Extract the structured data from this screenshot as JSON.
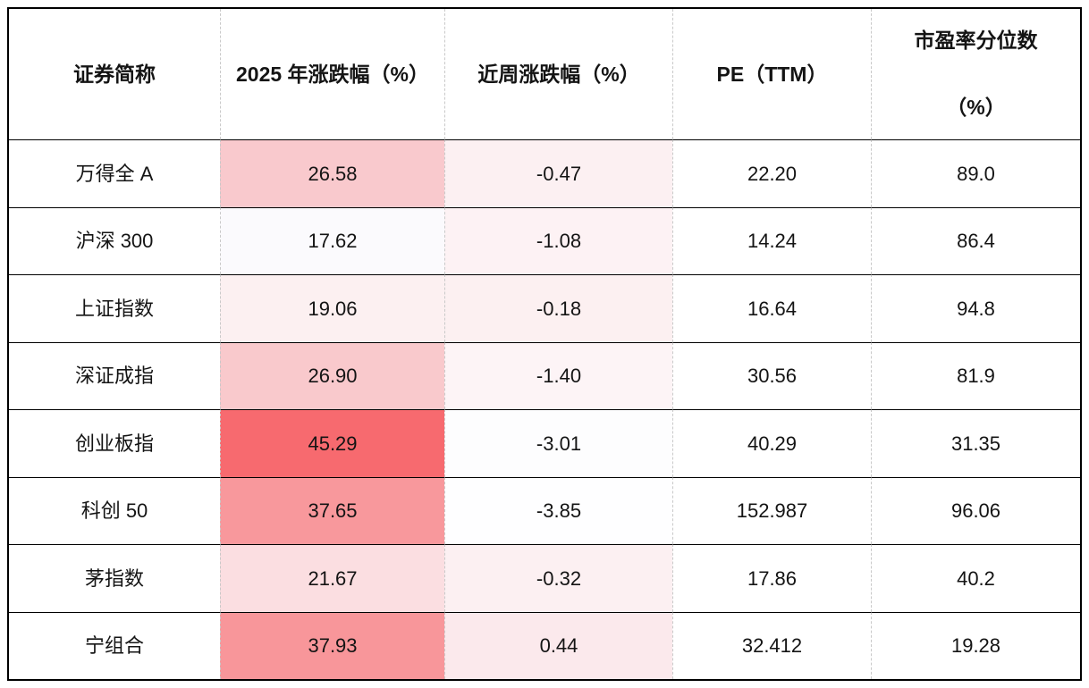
{
  "chart_data": {
    "type": "table",
    "title": "",
    "columns": [
      "证券简称",
      "2025 年涨跌幅（%）",
      "近周涨跌幅（%）",
      "PE（TTM）",
      "市盈率分位数（%）"
    ],
    "rows": [
      {
        "name": "万得全 A",
        "ytd_change": "26.58",
        "week_change": "-0.47",
        "pe_ttm": "22.20",
        "pe_percentile": "89.0",
        "ytd_bg": "#f9c9cd",
        "week_bg": "#fcf0f2"
      },
      {
        "name": "沪深 300",
        "ytd_change": "17.62",
        "week_change": "-1.08",
        "pe_ttm": "14.24",
        "pe_percentile": "86.4",
        "ytd_bg": "#fbfafd",
        "week_bg": "#fdf2f4"
      },
      {
        "name": "上证指数",
        "ytd_change": "19.06",
        "week_change": "-0.18",
        "pe_ttm": "16.64",
        "pe_percentile": "94.8",
        "ytd_bg": "#fcf0f1",
        "week_bg": "#fcf0f1"
      },
      {
        "name": "深证成指",
        "ytd_change": "26.90",
        "week_change": "-1.40",
        "pe_ttm": "30.56",
        "pe_percentile": "81.9",
        "ytd_bg": "#f9c9cc",
        "week_bg": "#fdf4f6"
      },
      {
        "name": "创业板指",
        "ytd_change": "45.29",
        "week_change": "-3.01",
        "pe_ttm": "40.29",
        "pe_percentile": "31.35",
        "ytd_bg": "#f76a6f",
        "week_bg": "#fdfdfe"
      },
      {
        "name": "科创 50",
        "ytd_change": "37.65",
        "week_change": "-3.85",
        "pe_ttm": "152.987",
        "pe_percentile": "96.06",
        "ytd_bg": "#f8989c",
        "week_bg": "#fefeff"
      },
      {
        "name": "茅指数",
        "ytd_change": "21.67",
        "week_change": "-0.32",
        "pe_ttm": "17.86",
        "pe_percentile": "40.2",
        "ytd_bg": "#fbdee1",
        "week_bg": "#fcf0f2"
      },
      {
        "name": "宁组合",
        "ytd_change": "37.93",
        "week_change": "0.44",
        "pe_ttm": "32.412",
        "pe_percentile": "19.28",
        "ytd_bg": "#f8969a",
        "week_bg": "#fbe9ec"
      }
    ],
    "layout": {
      "heatmap_columns": [
        "2025 年涨跌幅（%）",
        "近周涨跌幅（%）"
      ],
      "heatmap_scale": "white-to-red by value"
    }
  },
  "header": {
    "col1": "证券简称",
    "col2": "2025 年涨跌幅（%）",
    "col3": "近周涨跌幅（%）",
    "col4": "PE（TTM）",
    "col5_line1": "市盈率分位数",
    "col5_line2": "（%）"
  },
  "colors": {
    "strong_red": "#f76a6f",
    "light_pink": "#f9c9cd",
    "row_separator": "#000000",
    "column_separator_dashed": "#c9c9c9",
    "text": "#141414"
  }
}
